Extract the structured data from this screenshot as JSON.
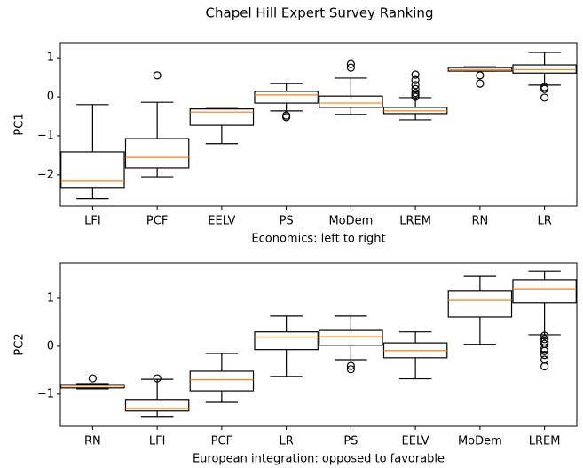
{
  "title": "Chapel Hill Expert Survey Ranking",
  "chart_data": [
    {
      "type": "box",
      "ylabel": "PC1",
      "xlabel": "Economics: left to right",
      "box_color": "#000000",
      "median_color": "#ff7f0e",
      "categories": [
        "LFI",
        "PCF",
        "EELV",
        "PS",
        "MoDem",
        "LREM",
        "RN",
        "LR"
      ],
      "boxes": [
        {
          "whislo": -2.61,
          "q1": -2.34,
          "med": -2.16,
          "q3": -1.41,
          "whishi": -0.2,
          "fliers": []
        },
        {
          "whislo": -2.05,
          "q1": -1.82,
          "med": -1.55,
          "q3": -1.07,
          "whishi": -0.14,
          "fliers": [
            0.55
          ]
        },
        {
          "whislo": -1.2,
          "q1": -0.73,
          "med": -0.39,
          "q3": -0.31,
          "whishi": -0.3,
          "fliers": []
        },
        {
          "whislo": -0.36,
          "q1": -0.16,
          "med": 0.05,
          "q3": 0.14,
          "whishi": 0.34,
          "fliers": [
            -0.48,
            -0.52
          ]
        },
        {
          "whislo": -0.45,
          "q1": -0.27,
          "med": -0.16,
          "q3": 0.02,
          "whishi": 0.48,
          "fliers": [
            0.84,
            0.75
          ]
        },
        {
          "whislo": -0.59,
          "q1": -0.43,
          "med": -0.36,
          "q3": -0.27,
          "whishi": -0.02,
          "fliers": [
            0.57,
            0.43,
            0.3,
            0.2,
            0.1,
            0.05,
            0
          ]
        },
        {
          "whislo": 0.66,
          "q1": 0.66,
          "med": 0.7,
          "q3": 0.75,
          "whishi": 0.77,
          "fliers": [
            0.55,
            0.34
          ]
        },
        {
          "whislo": 0.3,
          "q1": 0.61,
          "med": 0.7,
          "q3": 0.82,
          "whishi": 1.14,
          "fliers": [
            0.25,
            0.2,
            -0.02
          ]
        }
      ],
      "ylim": [
        -2.8,
        1.39
      ],
      "yticks": [
        {
          "value": -2,
          "label": "−2"
        },
        {
          "value": -1,
          "label": "−1"
        },
        0,
        1
      ]
    },
    {
      "type": "box",
      "ylabel": "PC2",
      "xlabel": "European integration: opposed to favorable",
      "box_color": "#000000",
      "median_color": "#ff7f0e",
      "categories": [
        "RN",
        "LFI",
        "PCF",
        "LR",
        "PS",
        "EELV",
        "MoDem",
        "LREM"
      ],
      "boxes": [
        {
          "whislo": -0.89,
          "q1": -0.87,
          "med": -0.83,
          "q3": -0.8,
          "whishi": -0.78,
          "fliers": [
            -0.67
          ]
        },
        {
          "whislo": -1.48,
          "q1": -1.35,
          "med": -1.3,
          "q3": -1.11,
          "whishi": -0.69,
          "fliers": [
            -0.67
          ]
        },
        {
          "whislo": -1.17,
          "q1": -0.93,
          "med": -0.7,
          "q3": -0.52,
          "whishi": -0.15,
          "fliers": []
        },
        {
          "whislo": -0.63,
          "q1": -0.07,
          "med": 0.19,
          "q3": 0.3,
          "whishi": 0.63,
          "fliers": []
        },
        {
          "whislo": -0.28,
          "q1": 0.02,
          "med": 0.2,
          "q3": 0.33,
          "whishi": 0.63,
          "fliers": [
            -0.41,
            -0.48
          ]
        },
        {
          "whislo": -0.68,
          "q1": -0.24,
          "med": -0.09,
          "q3": 0.07,
          "whishi": 0.3,
          "fliers": []
        },
        {
          "whislo": 0.04,
          "q1": 0.61,
          "med": 0.96,
          "q3": 1.15,
          "whishi": 1.46,
          "fliers": []
        },
        {
          "whislo": 0.24,
          "q1": 0.91,
          "med": 1.2,
          "q3": 1.39,
          "whishi": 1.57,
          "fliers": [
            0.22,
            0.15,
            0.1,
            0.05,
            -0.05,
            -0.1,
            -0.18,
            -0.28,
            -0.42
          ]
        }
      ],
      "ylim": [
        -1.67,
        1.74
      ],
      "yticks": [
        {
          "value": -1,
          "label": "−1"
        },
        0,
        1
      ]
    }
  ]
}
